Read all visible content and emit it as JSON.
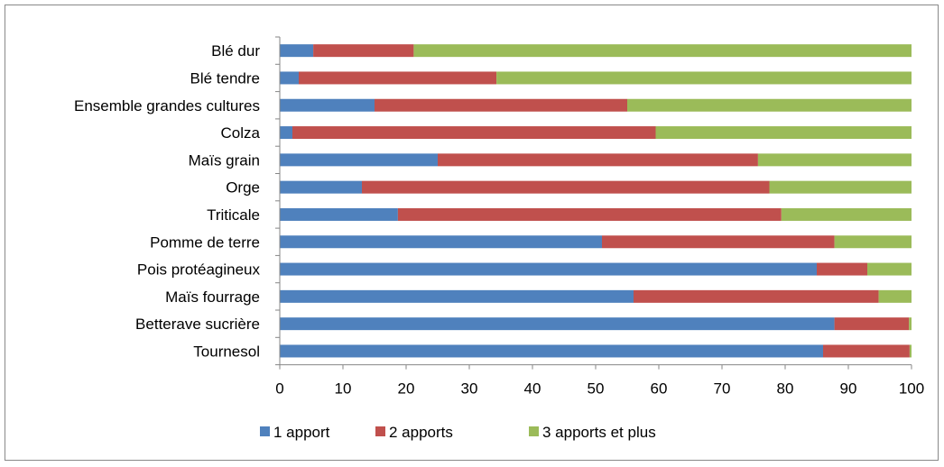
{
  "chart_data": {
    "type": "bar",
    "orientation": "horizontal",
    "stacked": true,
    "categories": [
      "Blé dur",
      "Blé tendre",
      "Ensemble grandes cultures",
      "Colza",
      "Maïs grain",
      "Orge",
      "Triticale",
      "Pomme de terre",
      "Pois protéagineux",
      "Maïs fourrage",
      "Betterave sucrière",
      "Tournesol"
    ],
    "series": [
      {
        "name": "1 apport",
        "color": "#4F81BD",
        "values": [
          5.3,
          3.0,
          15.0,
          2.0,
          25.0,
          13.0,
          18.7,
          51.0,
          85.0,
          56.0,
          87.8,
          86.0
        ]
      },
      {
        "name": "2 apports",
        "color": "#C0504D",
        "values": [
          15.9,
          31.3,
          40.0,
          57.5,
          50.7,
          64.5,
          60.7,
          36.8,
          8.0,
          38.8,
          11.8,
          13.7
        ]
      },
      {
        "name": "3 apports et plus",
        "color": "#9BBB59",
        "values": [
          78.8,
          65.7,
          45.0,
          40.5,
          24.3,
          22.5,
          20.6,
          12.2,
          7.0,
          5.2,
          0.4,
          0.3
        ]
      }
    ],
    "x_ticks": [
      "0",
      "10",
      "20",
      "30",
      "40",
      "50",
      "60",
      "70",
      "80",
      "90",
      "100"
    ],
    "xlim": [
      0,
      100
    ],
    "title": "",
    "xlabel": "",
    "ylabel": "",
    "grid": false,
    "legend_position": "bottom"
  }
}
